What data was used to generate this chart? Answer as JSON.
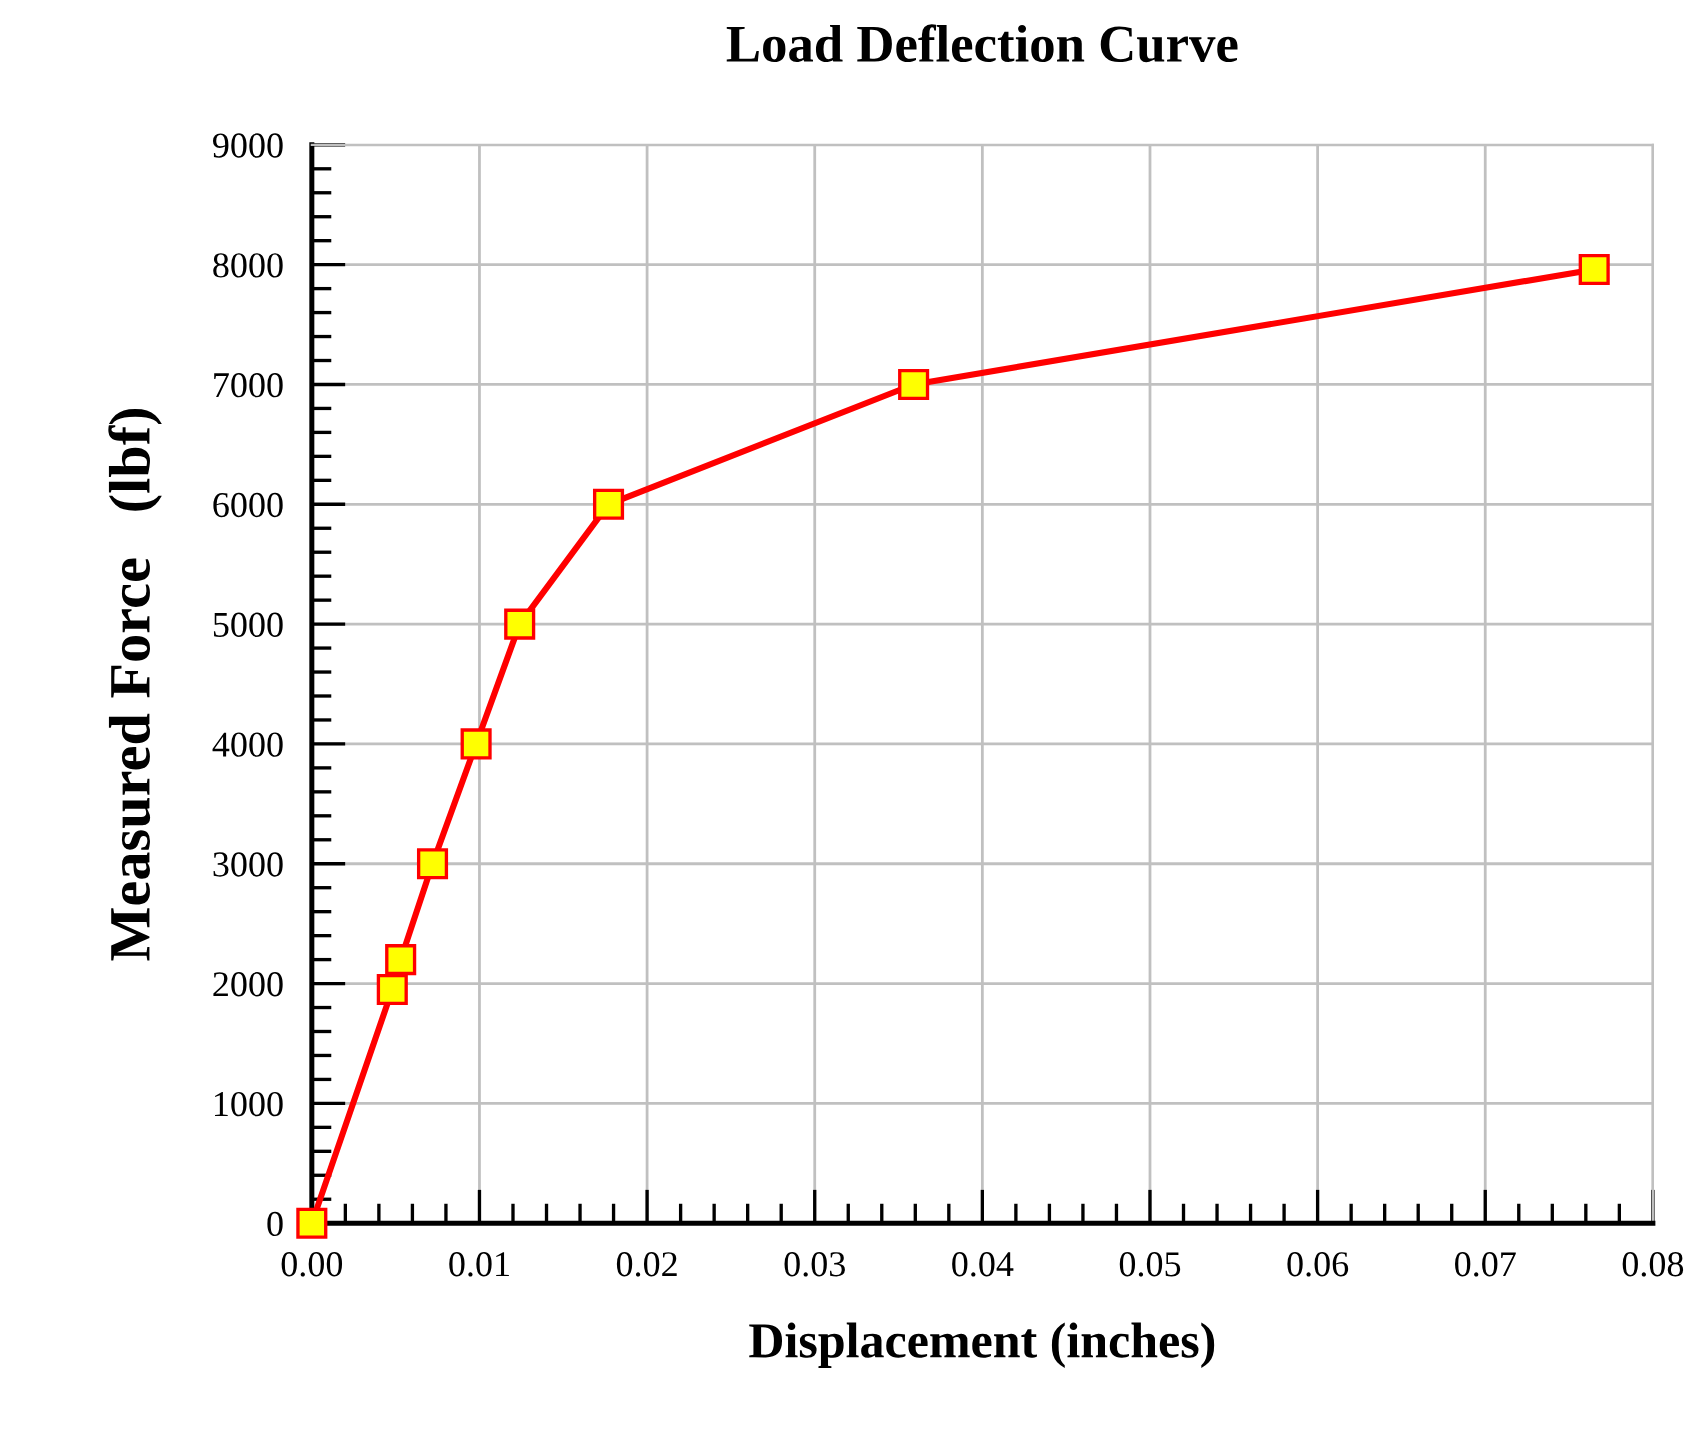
{
  "chart_data": {
    "type": "line",
    "title": "Load Deflection Curve",
    "xlabel": "Displacement (inches)",
    "ylabel": "Measured Force   (lbf)",
    "x": [
      0,
      0.0048,
      0.0053,
      0.0072,
      0.0098,
      0.0124,
      0.0177,
      0.0359,
      0.0765
    ],
    "series": [
      {
        "color": "#ff0000",
        "values": [
          0,
          1950,
          2200,
          3000,
          4000,
          5000,
          6000,
          7000,
          7960
        ]
      }
    ],
    "marker": "square",
    "line_style": "solid",
    "grid": true,
    "legend": false,
    "xlim": [
      0,
      0.08
    ],
    "xticks": [
      {
        "value": 0,
        "label": "0.00"
      },
      {
        "value": 0.01,
        "label": "0.01"
      },
      {
        "value": 0.02,
        "label": "0.02"
      },
      {
        "value": 0.03,
        "label": "0.03"
      },
      {
        "value": 0.04,
        "label": "0.04"
      },
      {
        "value": 0.05,
        "label": "0.05"
      },
      {
        "value": 0.06,
        "label": "0.06"
      },
      {
        "value": 0.07,
        "label": "0.07"
      },
      {
        "value": 0.08,
        "label": "0.08"
      }
    ],
    "ylim": [
      0,
      9000
    ],
    "yticks": [
      0,
      1000,
      2000,
      3000,
      4000,
      5000,
      6000,
      7000,
      8000,
      9000
    ]
  }
}
